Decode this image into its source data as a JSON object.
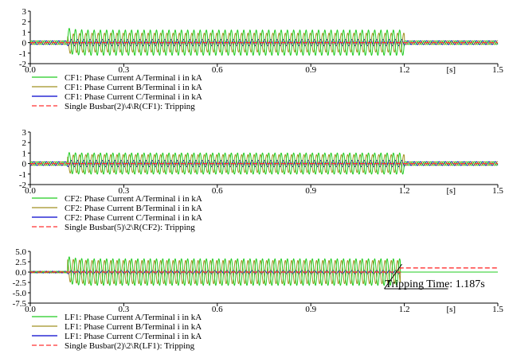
{
  "chart_data": [
    {
      "type": "line",
      "x_unit": "[s]",
      "xlim": [
        0.0,
        1.5
      ],
      "ylim": [
        -2,
        3
      ],
      "x_ticks": [
        0.0,
        0.3,
        0.6,
        0.9,
        1.2,
        1.5
      ],
      "x_tick_labels": [
        "0.0",
        "0.3",
        "0.6",
        "0.9",
        "1.2",
        "1.5"
      ],
      "y_ticks": [
        -2,
        -1,
        0,
        1,
        2,
        3
      ],
      "y_tick_labels": [
        "-2",
        "-1",
        "0",
        "1",
        "2",
        "3"
      ],
      "fault_interval": [
        0.12,
        1.2
      ],
      "series": [
        {
          "name": "CF1: Phase Current A/Terminal i in kA",
          "color": "#22cc22",
          "style": "solid",
          "amplitude_fault": 1.2,
          "amplitude_steady": 0.18,
          "initial_peak": 1.55,
          "phase": 0
        },
        {
          "name": "CF1: Phase Current B/Terminal i in kA",
          "color": "#a09020",
          "style": "solid",
          "amplitude_fault": 0.9,
          "amplitude_steady": 0.18,
          "initial_peak": -1.2,
          "phase": 2.094
        },
        {
          "name": "CF1: Phase Current C/Terminal i in kA",
          "color": "#0000cc",
          "style": "solid",
          "amplitude_fault": 0.3,
          "amplitude_steady": 0.18,
          "initial_peak": 0,
          "phase": 4.189
        },
        {
          "name": "Single Busbar(2)\\4\\R(CF1): Tripping",
          "color": "#ff3030",
          "style": "dashed",
          "value": 0
        }
      ]
    },
    {
      "type": "line",
      "x_unit": "[s]",
      "xlim": [
        0.0,
        1.5
      ],
      "ylim": [
        -2,
        3
      ],
      "x_ticks": [
        0.0,
        0.3,
        0.6,
        0.9,
        1.2,
        1.5
      ],
      "x_tick_labels": [
        "0.0",
        "0.3",
        "0.6",
        "0.9",
        "1.2",
        "1.5"
      ],
      "y_ticks": [
        -2,
        -1,
        0,
        1,
        2,
        3
      ],
      "y_tick_labels": [
        "-2",
        "-1",
        "0",
        "1",
        "2",
        "3"
      ],
      "fault_interval": [
        0.12,
        1.2
      ],
      "series": [
        {
          "name": "CF2: Phase Current A/Terminal i in kA",
          "color": "#22cc22",
          "style": "solid",
          "amplitude_fault": 1.0,
          "amplitude_steady": 0.18,
          "initial_peak": 1.1,
          "phase": 0
        },
        {
          "name": "CF2: Phase Current B/Terminal i in kA",
          "color": "#a09020",
          "style": "solid",
          "amplitude_fault": 0.85,
          "amplitude_steady": 0.18,
          "initial_peak": -1.0,
          "phase": 2.094
        },
        {
          "name": "CF2: Phase Current C/Terminal i in kA",
          "color": "#0000cc",
          "style": "solid",
          "amplitude_fault": 0.3,
          "amplitude_steady": 0.18,
          "initial_peak": 0,
          "phase": 4.189
        },
        {
          "name": "Single Busbar(5)\\2\\R(CF2): Tripping",
          "color": "#ff3030",
          "style": "dashed",
          "value": 0
        }
      ]
    },
    {
      "type": "line",
      "x_unit": "[s]",
      "xlim": [
        0.0,
        1.5
      ],
      "ylim": [
        -7.5,
        5.0
      ],
      "x_ticks": [
        0.0,
        0.3,
        0.6,
        0.9,
        1.2,
        1.5
      ],
      "x_tick_labels": [
        "0.0",
        "0.3",
        "0.6",
        "0.9",
        "1.2",
        "1.5"
      ],
      "y_ticks": [
        -7.5,
        -5.0,
        -2.5,
        0.0,
        2.5,
        5.0
      ],
      "y_tick_labels": [
        "-7.5",
        "-5.0",
        "-2.5",
        "0.0",
        "2.5",
        "5.0"
      ],
      "fault_interval": [
        0.12,
        1.187
      ],
      "series": [
        {
          "name": "LF1: Phase Current A/Terminal i in kA",
          "color": "#22cc22",
          "style": "solid",
          "amplitude_fault": 3.2,
          "amplitude_steady": 0.2,
          "initial_peak": 4.2,
          "phase": 0,
          "post_trip": 0
        },
        {
          "name": "LF1: Phase Current B/Terminal i in kA",
          "color": "#a09020",
          "style": "solid",
          "amplitude_fault": 2.8,
          "amplitude_steady": 0.2,
          "initial_peak": 3.8,
          "phase": 2.094,
          "post_trip": 0
        },
        {
          "name": "LF1: Phase Current C/Terminal i in kA",
          "color": "#0000cc",
          "style": "solid",
          "amplitude_fault": 0.4,
          "amplitude_steady": 0.2,
          "initial_peak": 0,
          "phase": 4.189,
          "post_trip": 0
        },
        {
          "name": "Single Busbar(2)\\2\\R(LF1): Tripping",
          "color": "#ff3030",
          "style": "dashed",
          "value_before": 0,
          "value_after": 1,
          "trip_time": 1.187
        }
      ],
      "annotation": {
        "text": "Tripping Time: 1.187s",
        "x": 1.187,
        "y": 0.0
      }
    }
  ]
}
